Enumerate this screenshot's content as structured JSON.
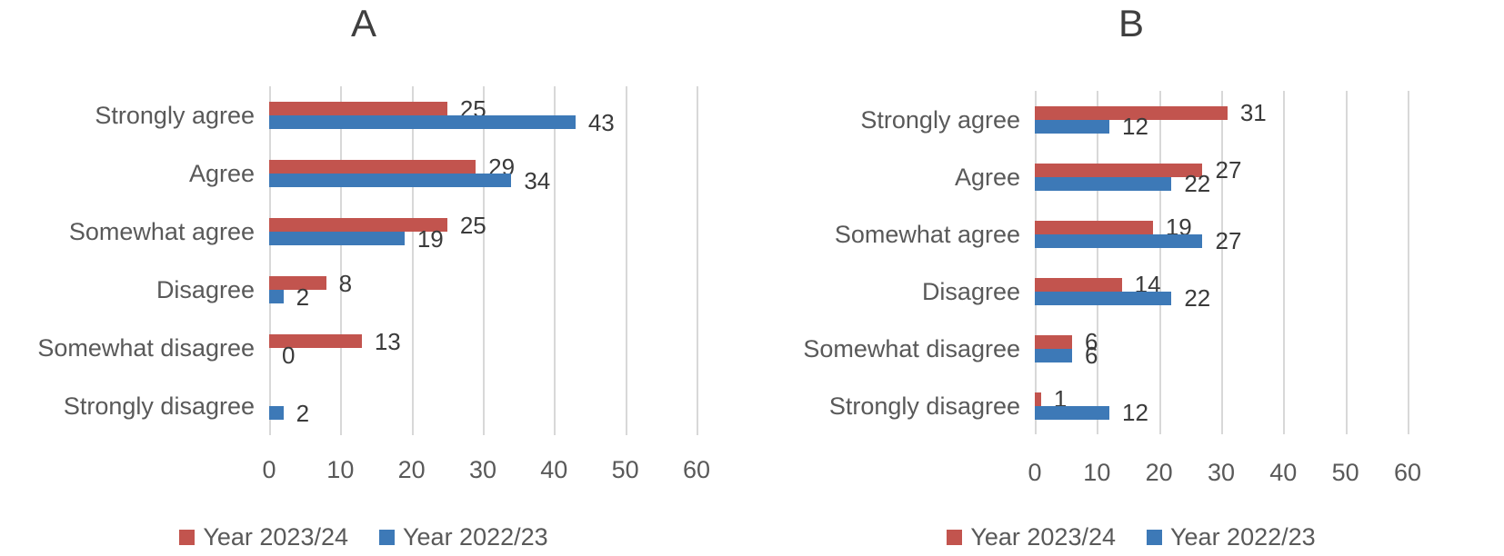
{
  "colors": {
    "red": "#c2544e",
    "blue": "#3d79b7",
    "grid": "#d8d8d8",
    "label_text": "#595959",
    "value_text": "#3a3a3a",
    "title_text": "#3f3f3f"
  },
  "chart_data": [
    {
      "type": "bar",
      "orientation": "horizontal",
      "title": "A",
      "categories": [
        "Strongly agree",
        "Agree",
        "Somewhat agree",
        "Disagree",
        "Somewhat disagree",
        "Strongly disagree"
      ],
      "series": [
        {
          "name": "Year 2023/24",
          "color": "#c2544e",
          "values": [
            25,
            29,
            25,
            8,
            13,
            0
          ],
          "labels": [
            "25",
            "29",
            "25",
            "8",
            "13",
            ""
          ]
        },
        {
          "name": "Year 2022/23",
          "color": "#3d79b7",
          "values": [
            43,
            34,
            19,
            2,
            0,
            2
          ],
          "labels": [
            "43",
            "34",
            "19",
            "2",
            "0",
            "2"
          ]
        }
      ],
      "x_ticks": [
        0,
        10,
        20,
        30,
        40,
        50,
        60
      ],
      "xlim": [
        0,
        60
      ],
      "grid": true,
      "legend_position": "bottom",
      "legend": [
        "Year 2023/24",
        "Year 2022/23"
      ]
    },
    {
      "type": "bar",
      "orientation": "horizontal",
      "title": "B",
      "categories": [
        "Strongly agree",
        "Agree",
        "Somewhat agree",
        "Disagree",
        "Somewhat disagree",
        "Strongly disagree"
      ],
      "series": [
        {
          "name": "Year 2023/24",
          "color": "#c2544e",
          "values": [
            31,
            27,
            19,
            14,
            6,
            1
          ],
          "labels": [
            "31",
            "27",
            "19",
            "14",
            "6",
            "1"
          ]
        },
        {
          "name": "Year 2022/23",
          "color": "#3d79b7",
          "values": [
            12,
            22,
            27,
            22,
            6,
            12
          ],
          "labels": [
            "12",
            "22",
            "27",
            "22",
            "6",
            "12"
          ]
        }
      ],
      "x_ticks": [
        0,
        10,
        20,
        30,
        40,
        50,
        60
      ],
      "xlim": [
        0,
        60
      ],
      "grid": true,
      "legend_position": "bottom",
      "legend": [
        "Year 2023/24",
        "Year 2022/23"
      ]
    }
  ]
}
